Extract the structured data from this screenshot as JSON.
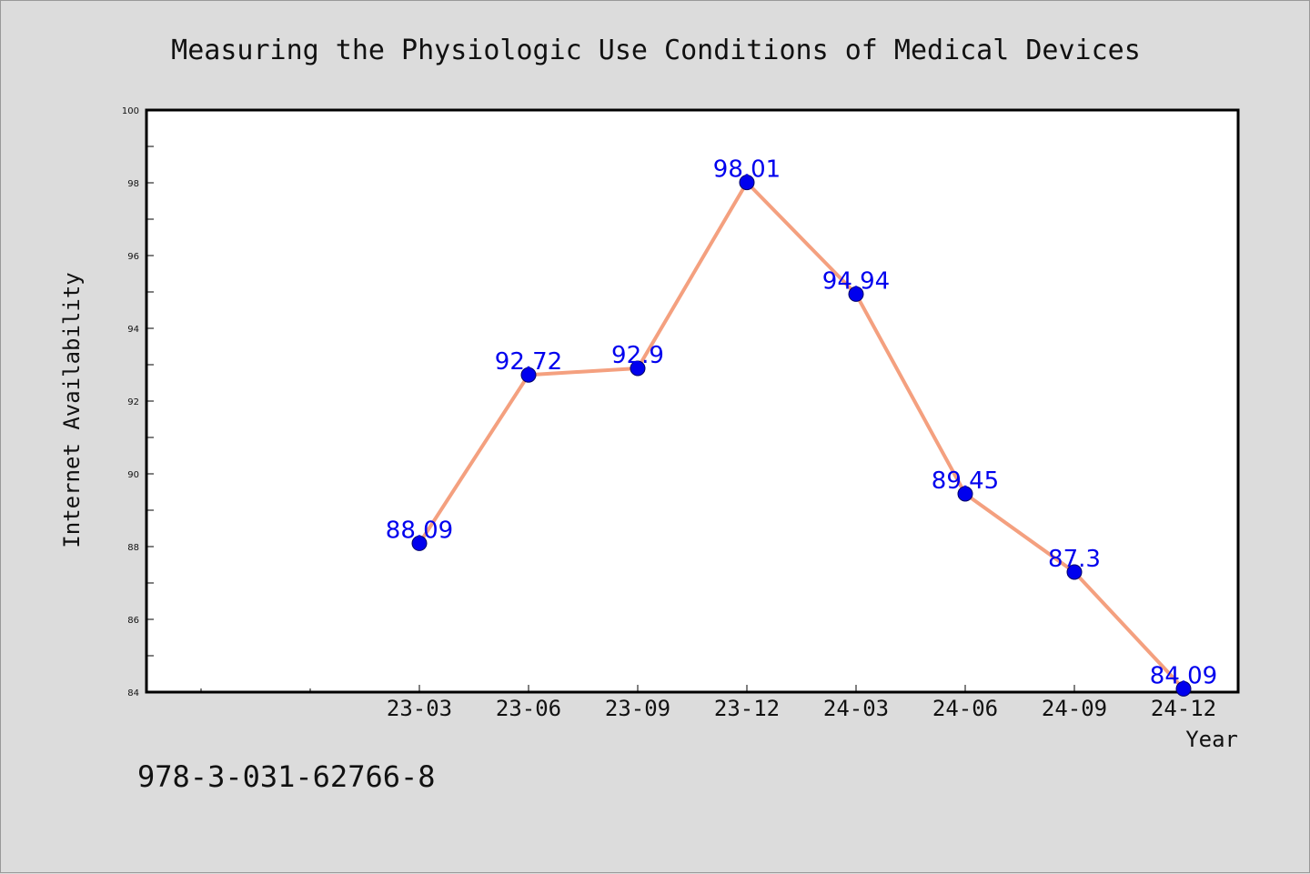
{
  "chart_data": {
    "type": "line",
    "title": "Measuring the Physiologic Use Conditions of Medical Devices",
    "xlabel": "Year",
    "ylabel": "Internet Availability",
    "categories": [
      "23-03",
      "23-06",
      "23-09",
      "23-12",
      "24-03",
      "24-06",
      "24-09",
      "24-12"
    ],
    "series": [
      {
        "values": [
          88.09,
          92.72,
          92.9,
          98.01,
          94.94,
          89.45,
          87.3,
          84.09
        ]
      }
    ],
    "data_labels": [
      "88.09",
      "92.72",
      "92.9",
      "98.01",
      "94.94",
      "89.45",
      "87.3",
      "84.09"
    ],
    "ylim": [
      84,
      100
    ],
    "yticks": [
      84,
      86,
      88,
      90,
      92,
      94,
      96,
      98,
      100
    ],
    "grid": false,
    "line_color": "#f4a07f",
    "marker_color": "#0000ee",
    "label_color": "#0000ee"
  },
  "footer_text": "978-3-031-62766-8"
}
